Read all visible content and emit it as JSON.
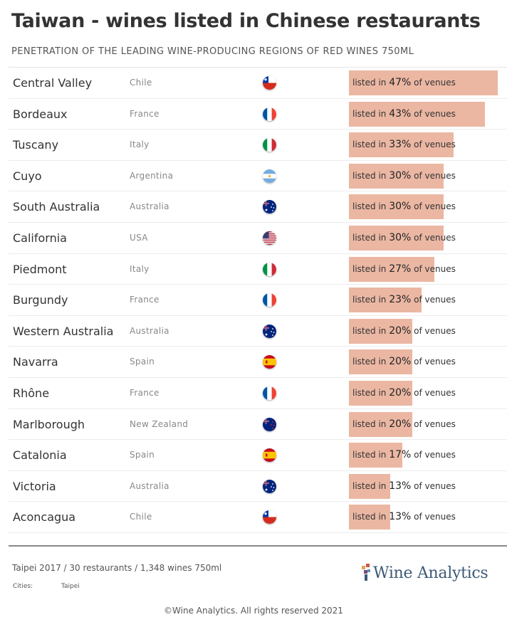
{
  "header": {
    "title": "Taiwan - wines listed in Chinese restaurants",
    "subtitle": "PENETRATION OF THE LEADING WINE-PRODUCING REGIONS OF RED WINES 750ML"
  },
  "bar_text": {
    "prefix": "listed in ",
    "suffix": " of venues"
  },
  "chart_data": {
    "type": "bar",
    "orientation": "horizontal",
    "title": "Taiwan - wines listed in Chinese restaurants",
    "subtitle": "PENETRATION OF THE LEADING WINE-PRODUCING REGIONS OF RED WINES 750ML",
    "xlim": [
      0,
      50
    ],
    "bar_color": "#ebb7a3",
    "rows": [
      {
        "region": "Central Valley",
        "country": "Chile",
        "flag": "chile-flag-icon",
        "value": 47,
        "label": "47%"
      },
      {
        "region": "Bordeaux",
        "country": "France",
        "flag": "france-flag-icon",
        "value": 43,
        "label": "43%"
      },
      {
        "region": "Tuscany",
        "country": "Italy",
        "flag": "italy-flag-icon",
        "value": 33,
        "label": "33%"
      },
      {
        "region": "Cuyo",
        "country": "Argentina",
        "flag": "argentina-flag-icon",
        "value": 30,
        "label": "30%"
      },
      {
        "region": "South Australia",
        "country": "Australia",
        "flag": "australia-flag-icon",
        "value": 30,
        "label": "30%"
      },
      {
        "region": "California",
        "country": "USA",
        "flag": "usa-flag-icon",
        "value": 30,
        "label": "30%"
      },
      {
        "region": "Piedmont",
        "country": "Italy",
        "flag": "italy-flag-icon",
        "value": 27,
        "label": "27%"
      },
      {
        "region": "Burgundy",
        "country": "France",
        "flag": "france-flag-icon",
        "value": 23,
        "label": "23%"
      },
      {
        "region": "Western Australia",
        "country": "Australia",
        "flag": "australia-flag-icon",
        "value": 20,
        "label": "20%"
      },
      {
        "region": "Navarra",
        "country": "Spain",
        "flag": "spain-flag-icon",
        "value": 20,
        "label": "20%"
      },
      {
        "region": "Rhône",
        "country": "France",
        "flag": "france-flag-icon",
        "value": 20,
        "label": "20%"
      },
      {
        "region": "Marlborough",
        "country": "New Zealand",
        "flag": "new-zealand-flag-icon",
        "value": 20,
        "label": "20%"
      },
      {
        "region": "Catalonia",
        "country": "Spain",
        "flag": "spain-flag-icon",
        "value": 17,
        "label": "17%"
      },
      {
        "region": "Victoria",
        "country": "Australia",
        "flag": "australia-flag-icon",
        "value": 13,
        "label": "13%"
      },
      {
        "region": "Aconcagua",
        "country": "Chile",
        "flag": "chile-flag-icon",
        "value": 13,
        "label": "13%"
      }
    ]
  },
  "footer": {
    "info": "Taipei 2017 / 30 restaurants  / 1,348 wines 750ml",
    "cities_label": "Cities:",
    "cities_value": "Taipei",
    "logo_text": "Wine Analytics",
    "logo_color": "#3c5a78",
    "copyright": "©Wine Analytics. All rights reserved 2021"
  }
}
